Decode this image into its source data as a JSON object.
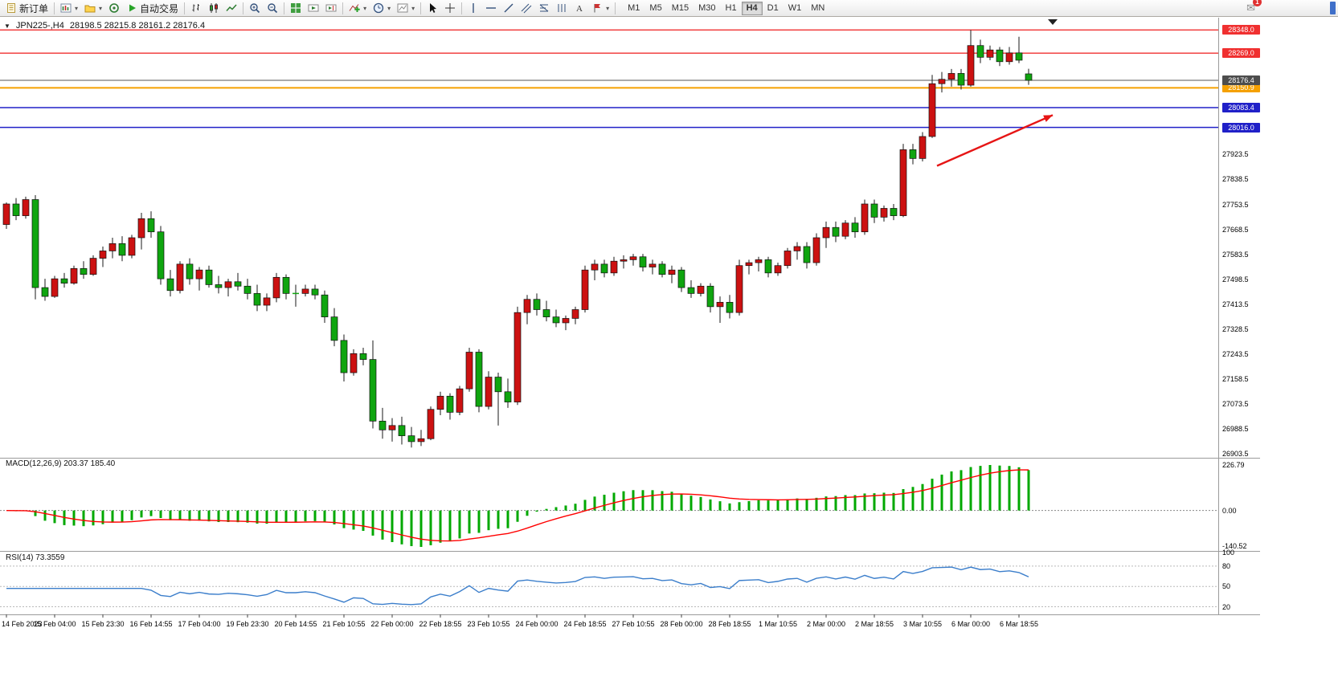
{
  "toolbar": {
    "new_order": "新订单",
    "autotrading": "自动交易",
    "timeframes": [
      "M1",
      "M5",
      "M15",
      "M30",
      "H1",
      "H4",
      "D1",
      "W1",
      "MN"
    ],
    "active_timeframe": "H4",
    "notification_badge": "1"
  },
  "chart": {
    "title": "JPN225-,H4",
    "ohlc": "28198.5 28215.8 28161.2 28176.4"
  },
  "macd_panel": {
    "label": "MACD(12,26,9) 203.37 185.40"
  },
  "rsi_panel": {
    "label": "RSI(14) 73.3559"
  },
  "chart_data": {
    "type": "candlestick",
    "symbol": "JPN225-",
    "period": "H4",
    "current_bar": {
      "open": 28198.5,
      "high": 28215.8,
      "low": 28161.2,
      "close": 28176.4
    },
    "current_price": {
      "value": 28176.4,
      "label": "28176.4",
      "line_color": "#555555",
      "badge_color": "#4d4d4d"
    },
    "price_axis": {
      "view_max": 28390,
      "view_min": 26890,
      "plain_labels": [
        27923.5,
        27838.5,
        27753.5,
        27668.5,
        27583.5,
        27498.5,
        27413.5,
        27328.5,
        27243.5,
        27158.5,
        27073.5,
        26988.5,
        26903.5
      ]
    },
    "horizontal_lines": [
      {
        "price": 28348.0,
        "label": "28348.0",
        "color": "#f03030",
        "width": 1.4
      },
      {
        "price": 28269.0,
        "label": "28269.0",
        "color": "#f03030",
        "width": 1.4
      },
      {
        "price": 28150.9,
        "label": "28150.9",
        "color": "#f5a000",
        "width": 2
      },
      {
        "price": 28083.4,
        "label": "28083.4",
        "color": "#2020c8",
        "width": 1.6
      },
      {
        "price": 28016.0,
        "label": "28016.0",
        "color": "#2020c8",
        "width": 1.6
      }
    ],
    "colors": {
      "bull": "#cc1111",
      "bear": "#0fa50f",
      "wick": "#1a1a1a",
      "macd_hist": "#00a800",
      "macd_signal": "#ff0000",
      "rsi_line": "#3b7ecb",
      "arrow": "#e61515"
    },
    "candles": [
      [
        27685,
        27760,
        27670,
        27755
      ],
      [
        27755,
        27775,
        27700,
        27715
      ],
      [
        27715,
        27780,
        27705,
        27770
      ],
      [
        27770,
        27785,
        27430,
        27470
      ],
      [
        27470,
        27500,
        27425,
        27440
      ],
      [
        27440,
        27510,
        27435,
        27500
      ],
      [
        27500,
        27520,
        27470,
        27485
      ],
      [
        27485,
        27545,
        27480,
        27535
      ],
      [
        27535,
        27560,
        27500,
        27515
      ],
      [
        27515,
        27580,
        27510,
        27570
      ],
      [
        27570,
        27610,
        27540,
        27595
      ],
      [
        27595,
        27640,
        27570,
        27620
      ],
      [
        27620,
        27645,
        27560,
        27580
      ],
      [
        27580,
        27650,
        27570,
        27640
      ],
      [
        27640,
        27725,
        27600,
        27705
      ],
      [
        27705,
        27730,
        27640,
        27660
      ],
      [
        27660,
        27680,
        27480,
        27500
      ],
      [
        27500,
        27530,
        27440,
        27460
      ],
      [
        27460,
        27560,
        27450,
        27550
      ],
      [
        27550,
        27570,
        27480,
        27500
      ],
      [
        27500,
        27540,
        27460,
        27530
      ],
      [
        27530,
        27545,
        27470,
        27480
      ],
      [
        27480,
        27510,
        27450,
        27470
      ],
      [
        27470,
        27500,
        27440,
        27490
      ],
      [
        27490,
        27520,
        27460,
        27475
      ],
      [
        27475,
        27500,
        27430,
        27450
      ],
      [
        27450,
        27480,
        27390,
        27410
      ],
      [
        27410,
        27450,
        27390,
        27435
      ],
      [
        27435,
        27520,
        27420,
        27505
      ],
      [
        27505,
        27515,
        27430,
        27450
      ],
      [
        27450,
        27480,
        27405,
        27450
      ],
      [
        27450,
        27480,
        27440,
        27465
      ],
      [
        27465,
        27480,
        27430,
        27445
      ],
      [
        27445,
        27460,
        27350,
        27370
      ],
      [
        27370,
        27400,
        27270,
        27290
      ],
      [
        27290,
        27310,
        27150,
        27180
      ],
      [
        27180,
        27260,
        27170,
        27245
      ],
      [
        27245,
        27265,
        27205,
        27225
      ],
      [
        27225,
        27290,
        26990,
        27015
      ],
      [
        27015,
        27060,
        26955,
        26985
      ],
      [
        26985,
        27025,
        26945,
        27000
      ],
      [
        27000,
        27030,
        26935,
        26965
      ],
      [
        26965,
        26995,
        26925,
        26945
      ],
      [
        26945,
        26985,
        26930,
        26955
      ],
      [
        26955,
        27065,
        26950,
        27055
      ],
      [
        27055,
        27115,
        27035,
        27100
      ],
      [
        27100,
        27110,
        27020,
        27045
      ],
      [
        27045,
        27135,
        27035,
        27125
      ],
      [
        27125,
        27265,
        27115,
        27250
      ],
      [
        27250,
        27260,
        27045,
        27065
      ],
      [
        27065,
        27185,
        27055,
        27165
      ],
      [
        27165,
        27180,
        27000,
        27115
      ],
      [
        27115,
        27160,
        27060,
        27080
      ],
      [
        27080,
        27405,
        27070,
        27385
      ],
      [
        27385,
        27445,
        27345,
        27430
      ],
      [
        27430,
        27450,
        27375,
        27395
      ],
      [
        27395,
        27425,
        27355,
        27370
      ],
      [
        27370,
        27395,
        27335,
        27350
      ],
      [
        27350,
        27375,
        27325,
        27365
      ],
      [
        27365,
        27405,
        27345,
        27395
      ],
      [
        27395,
        27545,
        27385,
        27530
      ],
      [
        27530,
        27565,
        27495,
        27550
      ],
      [
        27550,
        27565,
        27505,
        27520
      ],
      [
        27520,
        27575,
        27510,
        27560
      ],
      [
        27560,
        27580,
        27535,
        27565
      ],
      [
        27565,
        27585,
        27545,
        27575
      ],
      [
        27575,
        27585,
        27525,
        27540
      ],
      [
        27540,
        27565,
        27515,
        27550
      ],
      [
        27550,
        27560,
        27505,
        27515
      ],
      [
        27515,
        27545,
        27485,
        27530
      ],
      [
        27530,
        27540,
        27455,
        27470
      ],
      [
        27470,
        27495,
        27435,
        27450
      ],
      [
        27450,
        27485,
        27440,
        27475
      ],
      [
        27475,
        27485,
        27385,
        27405
      ],
      [
        27405,
        27440,
        27350,
        27420
      ],
      [
        27420,
        27445,
        27365,
        27385
      ],
      [
        27385,
        27565,
        27375,
        27545
      ],
      [
        27545,
        27565,
        27515,
        27555
      ],
      [
        27555,
        27575,
        27525,
        27565
      ],
      [
        27565,
        27575,
        27505,
        27520
      ],
      [
        27520,
        27555,
        27510,
        27545
      ],
      [
        27545,
        27605,
        27535,
        27595
      ],
      [
        27595,
        27625,
        27565,
        27610
      ],
      [
        27610,
        27625,
        27535,
        27555
      ],
      [
        27555,
        27655,
        27545,
        27640
      ],
      [
        27640,
        27695,
        27605,
        27675
      ],
      [
        27675,
        27695,
        27625,
        27645
      ],
      [
        27645,
        27700,
        27635,
        27690
      ],
      [
        27690,
        27710,
        27640,
        27660
      ],
      [
        27660,
        27770,
        27650,
        27755
      ],
      [
        27755,
        27770,
        27690,
        27710
      ],
      [
        27710,
        27750,
        27695,
        27740
      ],
      [
        27740,
        27755,
        27700,
        27715
      ],
      [
        27715,
        27960,
        27710,
        27940
      ],
      [
        27940,
        27960,
        27890,
        27910
      ],
      [
        27910,
        28000,
        27900,
        27985
      ],
      [
        27985,
        28195,
        27980,
        28165
      ],
      [
        28165,
        28205,
        28135,
        28180
      ],
      [
        28180,
        28215,
        28155,
        28200
      ],
      [
        28200,
        28215,
        28145,
        28160
      ],
      [
        28160,
        28348,
        28155,
        28295
      ],
      [
        28295,
        28315,
        28235,
        28255
      ],
      [
        28255,
        28295,
        28245,
        28280
      ],
      [
        28280,
        28290,
        28225,
        28240
      ],
      [
        28240,
        28290,
        28230,
        28270
      ],
      [
        28270,
        28325,
        28235,
        28245
      ],
      [
        28198.5,
        28215.8,
        28161.2,
        28176.4
      ]
    ],
    "label_every_n_bars": 5,
    "time_labels": [
      "14 Feb 2023",
      "15 Feb 04:00",
      "15 Feb 23:30",
      "16 Feb 14:55",
      "17 Feb 04:00",
      "19 Feb 23:30",
      "20 Feb 14:55",
      "21 Feb 10:55",
      "22 Feb 00:00",
      "22 Feb 18:55",
      "23 Feb 10:55",
      "24 Feb 00:00",
      "24 Feb 18:55",
      "27 Feb 10:55",
      "28 Feb 00:00",
      "28 Feb 18:55",
      "1 Mar 10:55",
      "2 Mar 00:00",
      "2 Mar 18:55",
      "3 Mar 10:55",
      "6 Mar 00:00",
      "6 Mar 18:55"
    ],
    "indicators": {
      "macd": {
        "fast": 12,
        "slow": 26,
        "signal": 9,
        "value": 203.37,
        "signal_value": 185.4,
        "axis_labels": [
          "226.79",
          "0.00",
          "-140.52"
        ]
      },
      "rsi": {
        "period": 14,
        "value": 73.3559,
        "levels": [
          80,
          50,
          20
        ],
        "axis_labels": [
          "100",
          "80",
          "50",
          "20"
        ],
        "axis_values": [
          100,
          80,
          50,
          20
        ],
        "scale_max": 100,
        "scale_min": 10
      }
    },
    "annotations": [
      {
        "type": "trend-arrow",
        "from_index": 96.5,
        "from_price": 27885,
        "to_index": 108.5,
        "to_price": 28058
      }
    ]
  }
}
